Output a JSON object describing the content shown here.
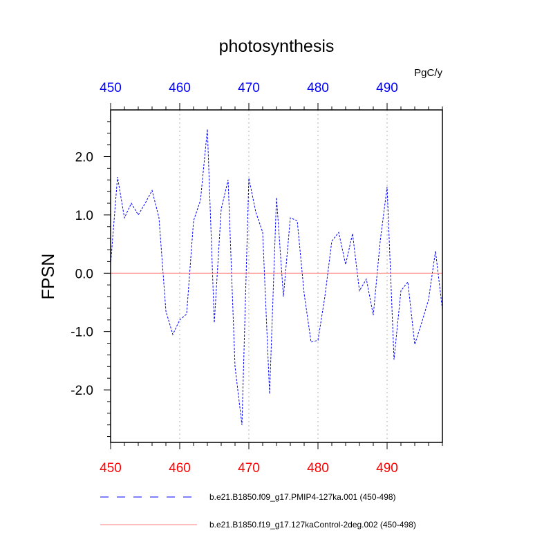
{
  "chart_data": {
    "type": "line",
    "title": "photosynthesis",
    "units_label": "PgC/y",
    "ylabel": "FPSN",
    "xlim": [
      450,
      498
    ],
    "ylim": [
      -2.9,
      2.8
    ],
    "x_ticks": [
      450,
      460,
      470,
      480,
      490
    ],
    "y_ticks": [
      -2.0,
      -1.0,
      0.0,
      1.0,
      2.0
    ],
    "y_tick_labels": [
      "-2.0",
      "-1.0",
      "0.0",
      "1.0",
      "2.0"
    ],
    "top_axis_color": "#0000ff",
    "bottom_axis_color": "#ff0000",
    "vertical_grid": true,
    "legend_position": "bottom",
    "x": [
      450,
      451,
      452,
      453,
      454,
      455,
      456,
      457,
      458,
      459,
      460,
      461,
      462,
      463,
      464,
      465,
      466,
      467,
      468,
      469,
      470,
      471,
      472,
      473,
      474,
      475,
      476,
      477,
      478,
      479,
      480,
      481,
      482,
      483,
      484,
      485,
      486,
      487,
      488,
      489,
      490,
      491,
      492,
      493,
      494,
      495,
      496,
      497,
      498
    ],
    "series": [
      {
        "name": "b.e21.B1850.f09_g17.PMIP4-127ka.001 (450-498)",
        "color": "#0000ff",
        "dash": "dashed",
        "values": [
          0.15,
          1.65,
          0.95,
          1.2,
          1.0,
          1.2,
          1.42,
          0.95,
          -0.65,
          -1.05,
          -0.8,
          -0.7,
          0.9,
          1.25,
          2.47,
          -0.85,
          1.1,
          1.6,
          -1.6,
          -2.6,
          1.63,
          1.05,
          0.7,
          -2.07,
          1.3,
          -0.4,
          0.95,
          0.9,
          -0.35,
          -1.18,
          -1.15,
          -0.4,
          0.55,
          0.7,
          0.15,
          0.68,
          -0.3,
          -0.1,
          -0.72,
          0.55,
          1.48,
          -1.48,
          -0.3,
          -0.15,
          -1.22,
          -0.85,
          -0.45,
          0.38,
          -0.62
        ]
      },
      {
        "name": "b.e21.B1850.f19_g17.127kaControl-2deg.002 (450-498)",
        "color": "#ff7f7f",
        "dash": "solid",
        "values": [
          0,
          0,
          0,
          0,
          0,
          0,
          0,
          0,
          0,
          0,
          0,
          0,
          0,
          0,
          0,
          0,
          0,
          0,
          0,
          0,
          0,
          0,
          0,
          0,
          0,
          0,
          0,
          0,
          0,
          0,
          0,
          0,
          0,
          0,
          0,
          0,
          0,
          0,
          0,
          0,
          0,
          0,
          0,
          0,
          0,
          0,
          0,
          0,
          0
        ]
      }
    ]
  }
}
